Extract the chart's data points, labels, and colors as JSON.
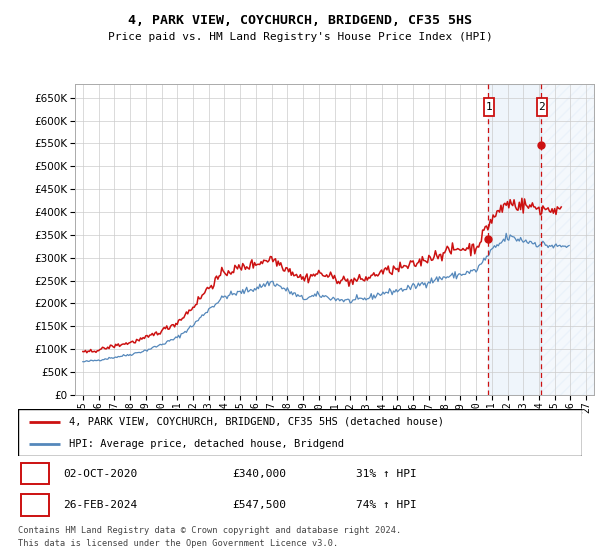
{
  "title": "4, PARK VIEW, COYCHURCH, BRIDGEND, CF35 5HS",
  "subtitle": "Price paid vs. HM Land Registry's House Price Index (HPI)",
  "ylim": [
    0,
    680000
  ],
  "yticks": [
    0,
    50000,
    100000,
    150000,
    200000,
    250000,
    300000,
    350000,
    400000,
    450000,
    500000,
    550000,
    600000,
    650000
  ],
  "xlim_start": 1994.5,
  "xlim_end": 2027.5,
  "xtick_years": [
    1995,
    1996,
    1997,
    1998,
    1999,
    2000,
    2001,
    2002,
    2003,
    2004,
    2005,
    2006,
    2007,
    2008,
    2009,
    2010,
    2011,
    2012,
    2013,
    2014,
    2015,
    2016,
    2017,
    2018,
    2019,
    2020,
    2021,
    2022,
    2023,
    2024,
    2025,
    2026,
    2027
  ],
  "hpi_color": "#5588bb",
  "property_color": "#cc1111",
  "sale1_x": 2020.75,
  "sale1_y": 340000,
  "sale2_x": 2024.12,
  "sale2_y": 547500,
  "legend_line1": "4, PARK VIEW, COYCHURCH, BRIDGEND, CF35 5HS (detached house)",
  "legend_line2": "HPI: Average price, detached house, Bridgend",
  "ann1": [
    "1",
    "02-OCT-2020",
    "£340,000",
    "31% ↑ HPI"
  ],
  "ann2": [
    "2",
    "26-FEB-2024",
    "£547,500",
    "74% ↑ HPI"
  ],
  "footer1": "Contains HM Land Registry data © Crown copyright and database right 2024.",
  "footer2": "This data is licensed under the Open Government Licence v3.0."
}
